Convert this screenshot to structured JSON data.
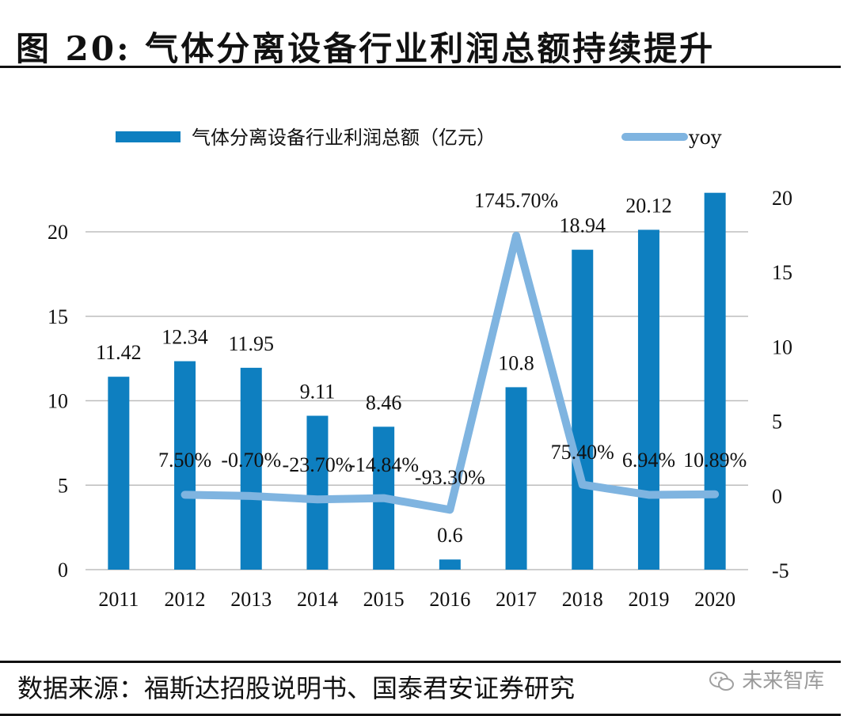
{
  "header": {
    "title": "图 20: 气体分离设备行业利润总额持续提升"
  },
  "footer": {
    "source": "数据来源：福斯达招股说明书、国泰君安证券研究",
    "watermark": "未来智库",
    "watermark_icon": "wechat-icon"
  },
  "colors": {
    "bar": "#0e7fc0",
    "line": "#7fb4e0",
    "grid": "#bdbdbd",
    "text": "#111111"
  },
  "chart_data": {
    "type": "bar",
    "title": "",
    "xlabel": "",
    "ylabel": "",
    "categories": [
      "2011",
      "2012",
      "2013",
      "2014",
      "2015",
      "2016",
      "2017",
      "2018",
      "2019",
      "2020"
    ],
    "legend": {
      "placement": "top-center",
      "entries": [
        "气体分离设备行业利润总额（亿元）",
        "yoy"
      ]
    },
    "grid": true,
    "series": [
      {
        "name": "气体分离设备行业利润总额（亿元）",
        "type": "bar",
        "axis": "left",
        "values": [
          11.42,
          12.34,
          11.95,
          9.11,
          8.46,
          0.6,
          10.8,
          18.94,
          20.12,
          22.31
        ],
        "labels": [
          "11.42",
          "12.34",
          "11.95",
          "9.11",
          "8.46",
          "0.6",
          "10.8",
          "18.94",
          "20.12",
          ""
        ]
      },
      {
        "name": "yoy",
        "type": "line",
        "axis": "right",
        "start_index": 1,
        "values": [
          0.075,
          -0.007,
          -0.237,
          -0.1484,
          -0.933,
          17.457,
          0.754,
          0.0694,
          0.1089
        ],
        "labels": [
          "7.50%",
          "-0.70%",
          "-23.70%",
          "-14.84%",
          "-93.30%",
          "1745.70%",
          "75.40%",
          "6.94%",
          "10.89%"
        ]
      }
    ],
    "left_axis": {
      "ylim": [
        0,
        20
      ],
      "ticks": [
        "0",
        "5",
        "10",
        "15",
        "20"
      ]
    },
    "right_axis": {
      "ylim": [
        -5,
        20
      ],
      "ticks": [
        "-5",
        "0",
        "5",
        "10",
        "15",
        "20"
      ]
    }
  }
}
